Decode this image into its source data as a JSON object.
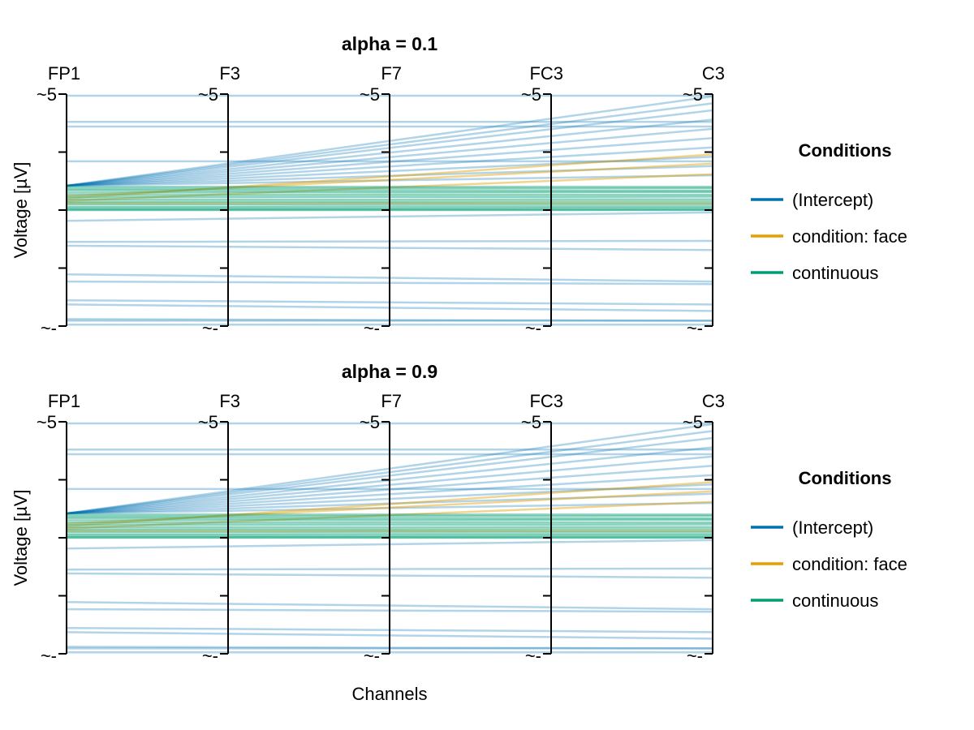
{
  "chart_data": [
    {
      "type": "line",
      "subtype": "parallel-coordinates",
      "title": "alpha = 0.1",
      "xlabel": "",
      "ylabel": "Voltage [µV]",
      "categories": [
        "FP1",
        "F3",
        "F7",
        "FC3",
        "C3"
      ],
      "axis_tick_top": "~5",
      "axis_tick_bottom": "~-",
      "ylim": [
        -5,
        5
      ],
      "grid": false,
      "legend_position": "right"
    },
    {
      "type": "line",
      "subtype": "parallel-coordinates",
      "title": "alpha = 0.9",
      "xlabel": "Channels",
      "ylabel": "Voltage [µV]",
      "categories": [
        "FP1",
        "F3",
        "F7",
        "FC3",
        "C3"
      ],
      "axis_tick_top": "~5",
      "axis_tick_bottom": "~-",
      "ylim": [
        -5,
        5
      ],
      "grid": false,
      "legend_position": "right"
    }
  ],
  "legend": {
    "title": "Conditions",
    "items": [
      {
        "label": "(Intercept)",
        "color": "#0072B2"
      },
      {
        "label": "condition: face",
        "color": "#E69F00"
      },
      {
        "label": "continuous",
        "color": "#009E73"
      }
    ]
  },
  "series": [
    {
      "name": "(Intercept)",
      "color": "#0072B2",
      "lines": [
        [
          4.93,
          4.93,
          4.93,
          4.93,
          4.93
        ],
        [
          3.8,
          3.8,
          3.8,
          3.8,
          3.8
        ],
        [
          3.6,
          3.6,
          3.6,
          3.6,
          3.6
        ],
        [
          2.1,
          2.1,
          2.1,
          2.1,
          2.1
        ],
        [
          1.05,
          2.01,
          2.98,
          3.94,
          4.9
        ],
        [
          1.05,
          1.94,
          2.83,
          3.71,
          4.6
        ],
        [
          1.05,
          1.86,
          2.68,
          3.49,
          4.3
        ],
        [
          1.05,
          1.76,
          2.48,
          3.19,
          3.9
        ],
        [
          1.05,
          1.66,
          2.28,
          2.89,
          3.5
        ],
        [
          1.05,
          1.56,
          2.08,
          2.59,
          3.1
        ],
        [
          1.05,
          1.46,
          1.88,
          2.29,
          2.7
        ],
        [
          1.05,
          1.36,
          1.68,
          1.99,
          2.3
        ],
        [
          1.05,
          1.26,
          1.48,
          1.69,
          1.9
        ],
        [
          1.05,
          1.16,
          1.28,
          1.39,
          1.5
        ],
        [
          -0.46,
          -0.37,
          -0.28,
          -0.19,
          -0.1
        ],
        [
          -1.37,
          -1.36,
          -1.35,
          -1.34,
          -1.33
        ],
        [
          -1.54,
          -1.58,
          -1.63,
          -1.67,
          -1.72
        ],
        [
          -2.77,
          -2.85,
          -2.92,
          -3.0,
          -3.08
        ],
        [
          -3.08,
          -3.11,
          -3.14,
          -3.16,
          -3.19
        ],
        [
          -3.89,
          -3.93,
          -3.98,
          -4.02,
          -4.07
        ],
        [
          -4.07,
          -4.14,
          -4.21,
          -4.28,
          -4.35
        ],
        [
          -4.7,
          -4.72,
          -4.74,
          -4.75,
          -4.77
        ],
        [
          -4.77,
          -4.77,
          -4.77,
          -4.77,
          -4.77
        ],
        [
          -4.94,
          -4.94,
          -4.94,
          -4.94,
          -4.94
        ]
      ]
    },
    {
      "name": "condition: face",
      "color": "#E69F00",
      "lines": [
        [
          0.5,
          0.98,
          1.45,
          1.93,
          2.4
        ],
        [
          0.6,
          0.95,
          1.3,
          1.65,
          2.0
        ],
        [
          0.4,
          0.69,
          0.98,
          1.26,
          1.55
        ],
        [
          0.3,
          0.3,
          0.3,
          0.3,
          0.3
        ]
      ]
    },
    {
      "name": "continuous",
      "color": "#009E73",
      "lines": [
        [
          1.0,
          1.0,
          1.0,
          1.0,
          1.0
        ],
        [
          0.92,
          0.92,
          0.93,
          0.93,
          0.94
        ],
        [
          0.85,
          0.84,
          0.84,
          0.83,
          0.83
        ],
        [
          0.75,
          0.76,
          0.76,
          0.77,
          0.78
        ],
        [
          0.65,
          0.65,
          0.66,
          0.66,
          0.66
        ],
        [
          0.55,
          0.56,
          0.57,
          0.57,
          0.58
        ],
        [
          0.45,
          0.45,
          0.45,
          0.46,
          0.46
        ],
        [
          0.35,
          0.36,
          0.36,
          0.37,
          0.37
        ],
        [
          0.25,
          0.25,
          0.26,
          0.26,
          0.26
        ],
        [
          0.15,
          0.15,
          0.16,
          0.16,
          0.16
        ],
        [
          0.08,
          0.08,
          0.08,
          0.09,
          0.09
        ],
        [
          0.02,
          0.02,
          0.02,
          0.02,
          0.02
        ],
        [
          0.0,
          0.0,
          0.0,
          0.0,
          0.0
        ]
      ]
    }
  ]
}
